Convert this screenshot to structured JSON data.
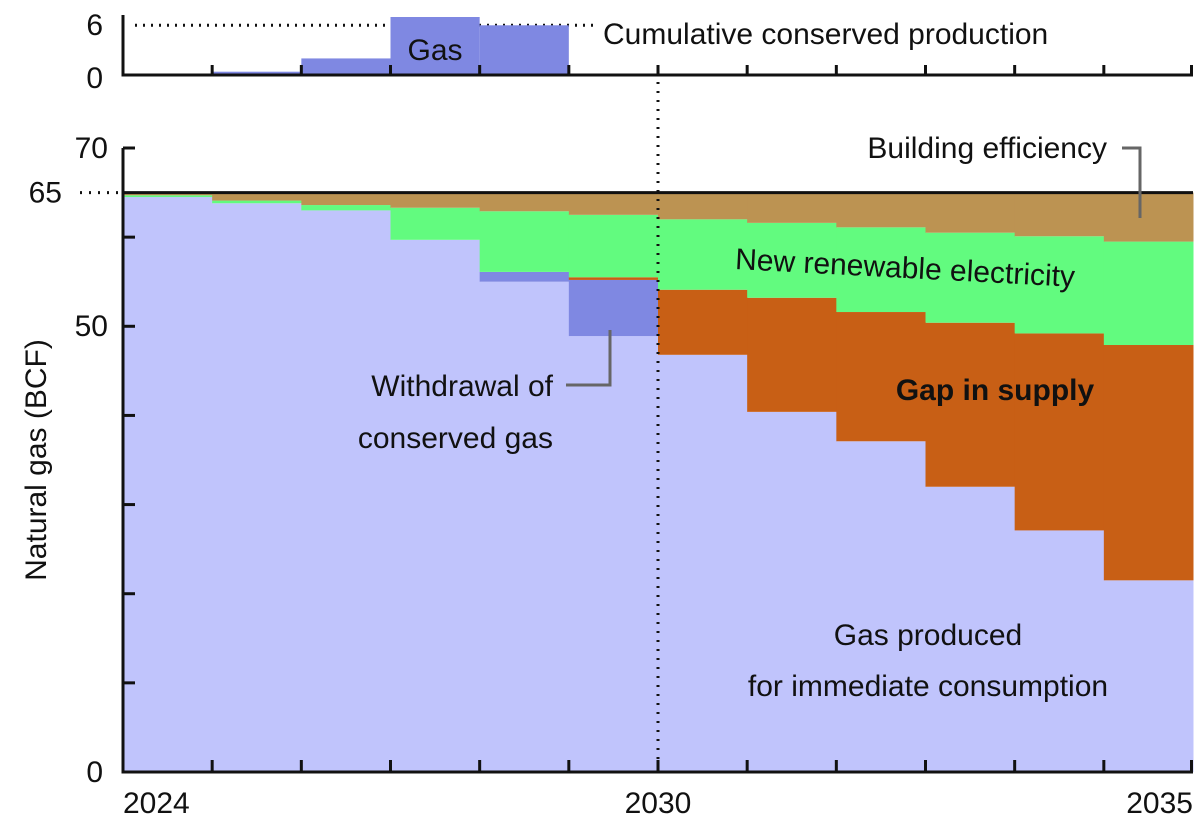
{
  "chart_data": [
    {
      "type": "step-bar",
      "categories": [
        "2024",
        null,
        null,
        null,
        null,
        null,
        "2030",
        null,
        null,
        null,
        null,
        "2035"
      ],
      "ylim": [
        0,
        7
      ],
      "yticks": [
        0,
        6
      ],
      "hline": 6,
      "color": "#7f88e2",
      "values": [
        0,
        0.4,
        2.0,
        7.0,
        6.0,
        0,
        0,
        0,
        0,
        0,
        0,
        0
      ],
      "annotations": [
        "Gas",
        "Cumulative conserved production"
      ]
    },
    {
      "type": "step-stack",
      "ylabel": "Natural gas (BCF)",
      "categories": [
        "2024",
        null,
        null,
        null,
        null,
        null,
        "2030",
        null,
        null,
        null,
        null,
        "2035"
      ],
      "ylim": [
        0,
        70
      ],
      "yticks": [
        0,
        50,
        65,
        70
      ],
      "yminorticks": [
        10,
        20,
        30,
        40,
        60
      ],
      "hline": 65,
      "divider_category": 6,
      "series": [
        {
          "label": [
            "Gas produced",
            "for immediate consumption"
          ],
          "color": "#c0c4fc",
          "values": [
            64.5,
            63.8,
            63.0,
            59.7,
            55.0,
            48.9,
            46.8,
            40.4,
            37.1,
            32.0,
            27.1,
            21.5
          ]
        },
        {
          "label": [
            "Withdrawal of",
            "conserved gas"
          ],
          "color": "#7f88e2",
          "values": [
            0,
            0,
            0,
            0,
            1.1,
            6.3,
            0,
            0,
            0,
            0,
            0,
            0
          ]
        },
        {
          "label": [
            "Gap in supply"
          ],
          "color": "#c85f15",
          "values": [
            0,
            0,
            0,
            0,
            0,
            0.3,
            7.3,
            12.8,
            14.5,
            18.4,
            22.1,
            26.4
          ]
        },
        {
          "label": [
            "New renewable electricity"
          ],
          "color": "#62fb7f",
          "values": [
            0.2,
            0.3,
            0.6,
            3.6,
            6.8,
            7.0,
            7.9,
            8.4,
            9.5,
            10.1,
            10.9,
            11.6
          ]
        },
        {
          "label": [
            "Building efficiency"
          ],
          "color": "#bc9352",
          "values": [
            0.3,
            0.9,
            1.4,
            1.7,
            2.1,
            2.5,
            3.0,
            3.4,
            3.9,
            4.5,
            4.9,
            5.5
          ]
        }
      ]
    }
  ]
}
